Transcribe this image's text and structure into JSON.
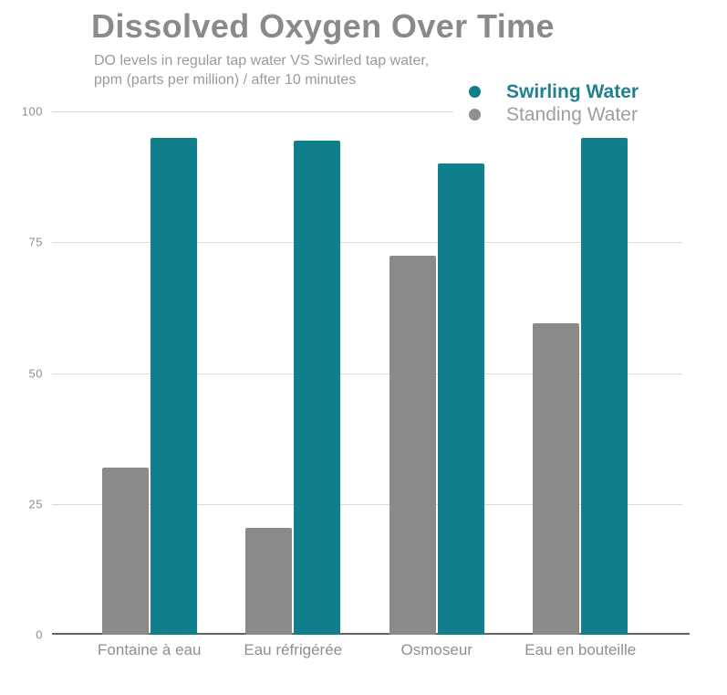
{
  "chart": {
    "title": "Dissolved Oxygen Over Time",
    "subtitle_line1": "DO levels in regular tap water VS Swirled tap water,",
    "subtitle_line2": "ppm (parts per million) / after 10 minutes",
    "legend": [
      {
        "label": "Swirling Water",
        "swatch_color": "#0e7f8b",
        "text_color": "#21808f"
      },
      {
        "label": "Standing Water",
        "swatch_color": "#8f8f8f",
        "text_color": "#9e9e9e"
      }
    ]
  },
  "chart_data": {
    "type": "bar",
    "title": "Dissolved Oxygen Over Time",
    "subtitle": "DO levels in regular tap water VS Swirled tap water, ppm (parts per million) / after 10 minutes",
    "categories": [
      "Fontaine à eau",
      "Eau réfrigérée",
      "Osmoseur",
      "Eau en bouteille"
    ],
    "series": [
      {
        "name": "Standing Water",
        "color": "#8a8a8a",
        "values": [
          32,
          20.5,
          72.5,
          59.5
        ]
      },
      {
        "name": "Swirling Water",
        "color": "#0e7f8b",
        "values": [
          95,
          94.5,
          90,
          95
        ]
      }
    ],
    "xlabel": "",
    "ylabel": "",
    "ylim": [
      0,
      100
    ],
    "yticks": [
      0,
      25,
      50,
      75,
      100
    ],
    "grid": true,
    "gridline_color": "#d9d9d9",
    "axis_line_color": "#636363",
    "legend_position": "top-right"
  }
}
